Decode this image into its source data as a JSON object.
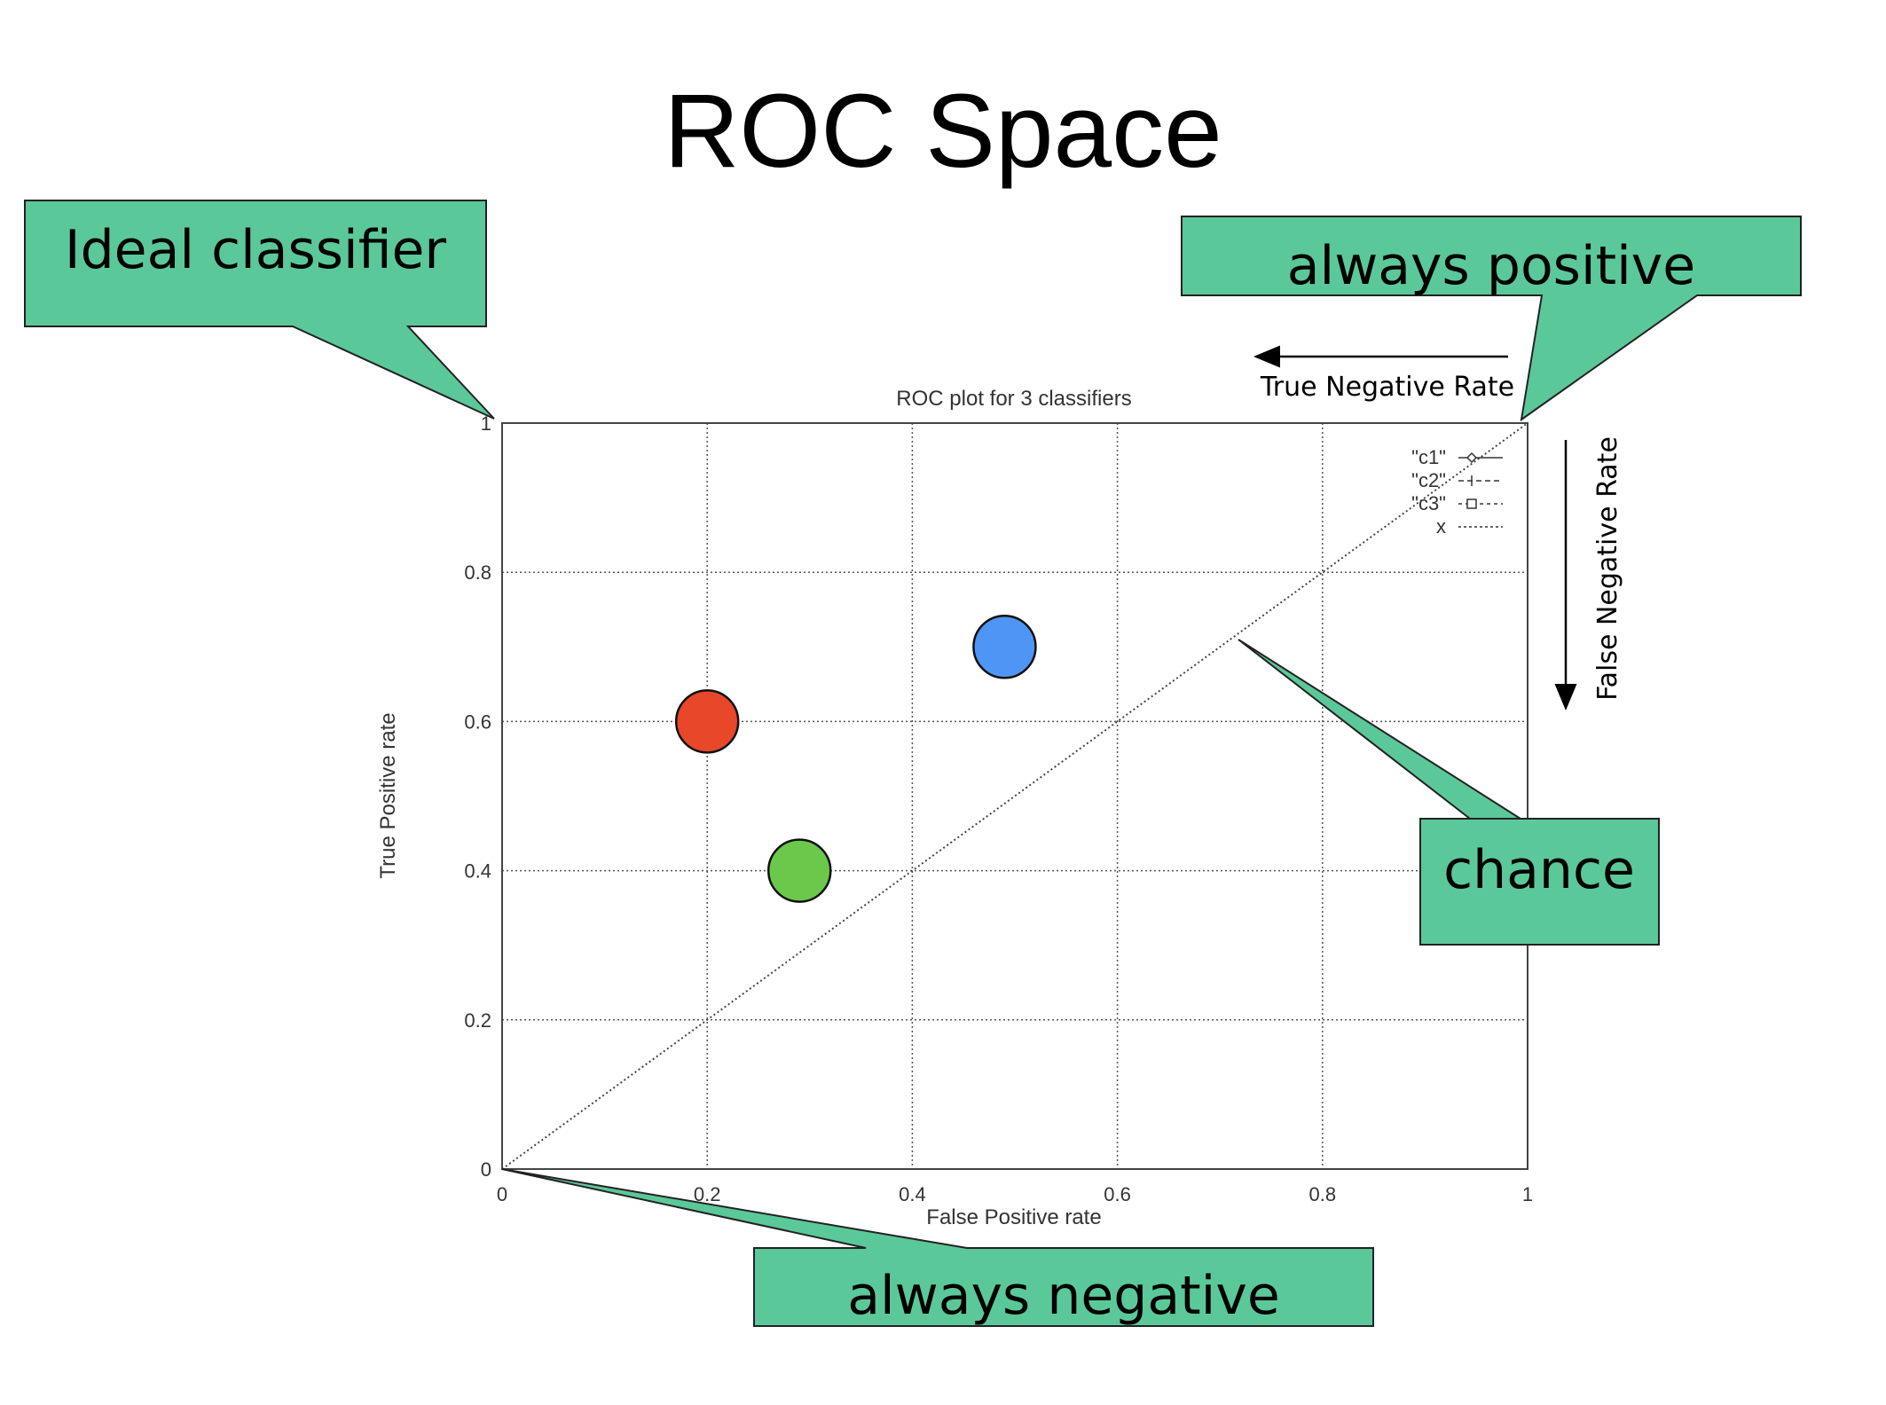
{
  "slide": {
    "title": "ROC Space"
  },
  "callouts": {
    "ideal": "Ideal classifier",
    "always_positive": "always positive",
    "always_negative": "always negative",
    "chance": "chance"
  },
  "arrows": {
    "top_label": "True Negative Rate",
    "right_label": "False  Negative Rate"
  },
  "colors": {
    "callout_fill": "#5bc89a",
    "red_point": "#e8472a",
    "green_point": "#6cc84a",
    "blue_point": "#4f95f5"
  },
  "chart_data": {
    "type": "scatter",
    "title": "ROC plot for 3 classifiers",
    "xlabel": "False Positive rate",
    "ylabel": "True Positive rate",
    "xlim": [
      0,
      1
    ],
    "ylim": [
      0,
      1
    ],
    "grid": true,
    "xticks": [
      "0",
      "0.2",
      "0.4",
      "0.6",
      "0.8",
      "1"
    ],
    "yticks": [
      "0",
      "0.2",
      "0.4",
      "0.6",
      "0.8",
      "1"
    ],
    "legend": {
      "placement": "top-right",
      "entries": [
        "\"c1\"",
        "\"c2\"",
        "\"c3\"",
        "x"
      ]
    },
    "series": [
      {
        "name": "x",
        "type": "line",
        "style": "dotted",
        "points": [
          [
            0,
            0
          ],
          [
            1,
            1
          ]
        ]
      }
    ],
    "points": [
      {
        "x": 0.2,
        "y": 0.6,
        "color": "#e8472a"
      },
      {
        "x": 0.29,
        "y": 0.4,
        "color": "#6cc84a"
      },
      {
        "x": 0.49,
        "y": 0.7,
        "color": "#4f95f5"
      }
    ]
  }
}
